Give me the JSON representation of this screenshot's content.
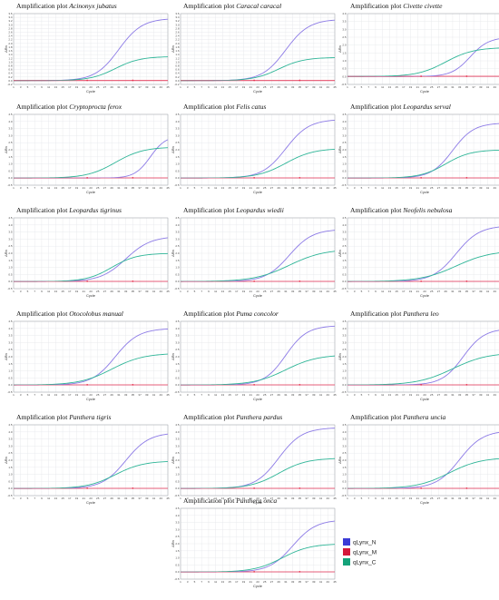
{
  "legend": [
    {
      "name": "qLynx_N",
      "color": "#3b3bd6"
    },
    {
      "name": "qLynx_M",
      "color": "#d4183a"
    },
    {
      "name": "qLynx_C",
      "color": "#14a37a"
    }
  ],
  "colors": {
    "N_curve": "#8c7ae6",
    "C_curve": "#2eb597",
    "M_curve": "#e05a78",
    "threshold": "#e8334f",
    "grid": "#e3e6ea",
    "axis": "#222222"
  },
  "chart_data": [
    {
      "type": "line",
      "title_prefix": "Amplification plot",
      "species": "Acinonyx jubatus",
      "xlabel": "Cycle",
      "ylabel": "ΔRn",
      "xlim": [
        1,
        45
      ],
      "ylim": [
        -0.2,
        3.6
      ],
      "yticks": [
        "-0.2",
        "0.0",
        "0.2",
        "0.4",
        "0.6",
        "0.8",
        "1.0",
        "1.2",
        "1.4",
        "1.6",
        "1.8",
        "2.0",
        "2.2",
        "2.4",
        "2.6",
        "2.8",
        "3.0",
        "3.2",
        "3.4",
        "3.6"
      ],
      "series": [
        {
          "name": "qLynx_N",
          "ct": 31,
          "plateau": 3.35,
          "slope": 0.3
        },
        {
          "name": "qLynx_C",
          "ct": 30,
          "plateau": 1.3,
          "slope": 0.28
        },
        {
          "name": "qLynx_M",
          "ct": 100,
          "plateau": 0.0,
          "slope": 0.3
        }
      ]
    },
    {
      "type": "line",
      "title_prefix": "Amplification plot",
      "species": "Caracal caracal",
      "xlabel": "Cycle",
      "ylabel": "ΔRn",
      "xlim": [
        1,
        45
      ],
      "ylim": [
        -0.2,
        3.6
      ],
      "yticks": [
        "-0.2",
        "0.0",
        "0.2",
        "0.4",
        "0.6",
        "0.8",
        "1.0",
        "1.2",
        "1.4",
        "1.6",
        "1.8",
        "2.0",
        "2.2",
        "2.4",
        "2.6",
        "2.8",
        "3.0",
        "3.2",
        "3.4",
        "3.6"
      ],
      "series": [
        {
          "name": "qLynx_N",
          "ct": 31,
          "plateau": 3.3,
          "slope": 0.3
        },
        {
          "name": "qLynx_C",
          "ct": 29,
          "plateau": 1.25,
          "slope": 0.28
        },
        {
          "name": "qLynx_M",
          "ct": 100,
          "plateau": 0.0,
          "slope": 0.3
        }
      ]
    },
    {
      "type": "line",
      "title_prefix": "Amplification plot",
      "species": "Civette civette",
      "xlabel": "Cycle",
      "ylabel": "ΔRn",
      "xlim": [
        1,
        45
      ],
      "ylim": [
        -0.5,
        4.0
      ],
      "yticks": [
        "-0.5",
        "0.0",
        "0.5",
        "1.0",
        "1.5",
        "2.0",
        "2.5",
        "3.0",
        "3.5",
        "4.0"
      ],
      "series": [
        {
          "name": "qLynx_N",
          "ct": 36,
          "plateau": 2.5,
          "slope": 0.38
        },
        {
          "name": "qLynx_C",
          "ct": 29,
          "plateau": 1.85,
          "slope": 0.25
        },
        {
          "name": "qLynx_M",
          "ct": 100,
          "plateau": 0.0,
          "slope": 0.3
        }
      ]
    },
    {
      "type": "line",
      "title_prefix": "Amplification plot",
      "species": "Cryptoprocta ferox",
      "xlabel": "Cycle",
      "ylabel": "ΔRn",
      "xlim": [
        1,
        45
      ],
      "ylim": [
        -0.5,
        4.5
      ],
      "yticks": [
        "-0.5",
        "0.0",
        "0.5",
        "1.0",
        "1.5",
        "2.0",
        "2.5",
        "3.0",
        "3.5",
        "4.0",
        "4.5"
      ],
      "series": [
        {
          "name": "qLynx_N",
          "ct": 40,
          "plateau": 3.0,
          "slope": 0.45
        },
        {
          "name": "qLynx_C",
          "ct": 30,
          "plateau": 2.2,
          "slope": 0.25
        },
        {
          "name": "qLynx_M",
          "ct": 100,
          "plateau": 0.0,
          "slope": 0.3
        }
      ]
    },
    {
      "type": "line",
      "title_prefix": "Amplification plot",
      "species": "Felis catus",
      "xlabel": "Cycle",
      "ylabel": "ΔRn",
      "xlim": [
        1,
        45
      ],
      "ylim": [
        -0.5,
        4.5
      ],
      "yticks": [
        "-0.5",
        "0.0",
        "0.5",
        "1.0",
        "1.5",
        "2.0",
        "2.5",
        "3.0",
        "3.5",
        "4.0",
        "4.5"
      ],
      "series": [
        {
          "name": "qLynx_N",
          "ct": 31,
          "plateau": 4.15,
          "slope": 0.3
        },
        {
          "name": "qLynx_C",
          "ct": 31,
          "plateau": 2.1,
          "slope": 0.25
        },
        {
          "name": "qLynx_M",
          "ct": 100,
          "plateau": 0.0,
          "slope": 0.3
        }
      ]
    },
    {
      "type": "line",
      "title_prefix": "Amplification plot",
      "species": "Leopardus serval",
      "xlabel": "Cycle",
      "ylabel": "ΔRn",
      "xlim": [
        1,
        45
      ],
      "ylim": [
        -0.5,
        4.5
      ],
      "yticks": [
        "-0.5",
        "0.0",
        "0.5",
        "1.0",
        "1.5",
        "2.0",
        "2.5",
        "3.0",
        "3.5",
        "4.0",
        "4.5"
      ],
      "series": [
        {
          "name": "qLynx_N",
          "ct": 31,
          "plateau": 3.9,
          "slope": 0.33
        },
        {
          "name": "qLynx_C",
          "ct": 29,
          "plateau": 2.0,
          "slope": 0.28
        },
        {
          "name": "qLynx_M",
          "ct": 100,
          "plateau": 0.0,
          "slope": 0.3
        }
      ]
    },
    {
      "type": "line",
      "title_prefix": "Amplification plot",
      "species": "Leopardus tigrinus",
      "xlabel": "Cycle",
      "ylabel": "ΔRn",
      "xlim": [
        1,
        45
      ],
      "ylim": [
        -0.5,
        4.5
      ],
      "yticks": [
        "-0.5",
        "0.0",
        "0.5",
        "1.0",
        "1.5",
        "2.0",
        "2.5",
        "3.0",
        "3.5",
        "4.0",
        "4.5"
      ],
      "series": [
        {
          "name": "qLynx_N",
          "ct": 33,
          "plateau": 3.2,
          "slope": 0.28
        },
        {
          "name": "qLynx_C",
          "ct": 29,
          "plateau": 2.0,
          "slope": 0.28
        },
        {
          "name": "qLynx_M",
          "ct": 100,
          "plateau": 0.0,
          "slope": 0.3
        }
      ]
    },
    {
      "type": "line",
      "title_prefix": "Amplification plot",
      "species": "Leopardus wiedii",
      "xlabel": "Cycle",
      "ylabel": "ΔRn",
      "xlim": [
        1,
        45
      ],
      "ylim": [
        -0.5,
        4.5
      ],
      "yticks": [
        "-0.5",
        "0.0",
        "0.5",
        "1.0",
        "1.5",
        "2.0",
        "2.5",
        "3.0",
        "3.5",
        "4.0",
        "4.5"
      ],
      "series": [
        {
          "name": "qLynx_N",
          "ct": 32,
          "plateau": 3.7,
          "slope": 0.3
        },
        {
          "name": "qLynx_C",
          "ct": 32,
          "plateau": 2.3,
          "slope": 0.2
        },
        {
          "name": "qLynx_M",
          "ct": 100,
          "plateau": 0.0,
          "slope": 0.3
        }
      ]
    },
    {
      "type": "line",
      "title_prefix": "Amplification plot",
      "species": "Neofelis nebulosa",
      "xlabel": "Cycle",
      "ylabel": "ΔRn",
      "xlim": [
        1,
        45
      ],
      "ylim": [
        -0.5,
        4.5
      ],
      "yticks": [
        "-0.5",
        "0.0",
        "0.5",
        "1.0",
        "1.5",
        "2.0",
        "2.5",
        "3.0",
        "3.5",
        "4.0",
        "4.5"
      ],
      "series": [
        {
          "name": "qLynx_N",
          "ct": 32,
          "plateau": 3.95,
          "slope": 0.3
        },
        {
          "name": "qLynx_C",
          "ct": 32,
          "plateau": 2.2,
          "slope": 0.2
        },
        {
          "name": "qLynx_M",
          "ct": 100,
          "plateau": 0.0,
          "slope": 0.3
        }
      ]
    },
    {
      "type": "line",
      "title_prefix": "Amplification plot",
      "species": "Otocolobus manual",
      "xlabel": "Cycle",
      "ylabel": "ΔRn",
      "xlim": [
        1,
        45
      ],
      "ylim": [
        -0.5,
        4.5
      ],
      "yticks": [
        "-0.5",
        "0.0",
        "0.5",
        "1.0",
        "1.5",
        "2.0",
        "2.5",
        "3.0",
        "3.5",
        "4.0",
        "4.5"
      ],
      "series": [
        {
          "name": "qLynx_N",
          "ct": 30,
          "plateau": 4.0,
          "slope": 0.3
        },
        {
          "name": "qLynx_C",
          "ct": 29,
          "plateau": 2.25,
          "slope": 0.22
        },
        {
          "name": "qLynx_M",
          "ct": 100,
          "plateau": 0.0,
          "slope": 0.3
        }
      ]
    },
    {
      "type": "line",
      "title_prefix": "Amplification plot",
      "species": "Puma concolor",
      "xlabel": "Cycle",
      "ylabel": "ΔRn",
      "xlim": [
        1,
        45
      ],
      "ylim": [
        -0.5,
        4.5
      ],
      "yticks": [
        "-0.5",
        "0.0",
        "0.5",
        "1.0",
        "1.5",
        "2.0",
        "2.5",
        "3.0",
        "3.5",
        "4.0",
        "4.5"
      ],
      "series": [
        {
          "name": "qLynx_N",
          "ct": 31,
          "plateau": 4.2,
          "slope": 0.33
        },
        {
          "name": "qLynx_C",
          "ct": 31,
          "plateau": 2.15,
          "slope": 0.22
        },
        {
          "name": "qLynx_M",
          "ct": 100,
          "plateau": 0.0,
          "slope": 0.3
        }
      ]
    },
    {
      "type": "line",
      "title_prefix": "Amplification plot",
      "species": "Panthera leo",
      "xlabel": "Cycle",
      "ylabel": "ΔRn",
      "xlim": [
        1,
        45
      ],
      "ylim": [
        -0.5,
        4.5
      ],
      "yticks": [
        "-0.5",
        "0.0",
        "0.5",
        "1.0",
        "1.5",
        "2.0",
        "2.5",
        "3.0",
        "3.5",
        "4.0",
        "4.5"
      ],
      "series": [
        {
          "name": "qLynx_N",
          "ct": 34,
          "plateau": 4.0,
          "slope": 0.33
        },
        {
          "name": "qLynx_C",
          "ct": 31,
          "plateau": 2.3,
          "slope": 0.2
        },
        {
          "name": "qLynx_M",
          "ct": 100,
          "plateau": 0.0,
          "slope": 0.3
        }
      ]
    },
    {
      "type": "line",
      "title_prefix": "Amplification plot",
      "species": "Panthera tigris",
      "xlabel": "Cycle",
      "ylabel": "ΔRn",
      "xlim": [
        1,
        45
      ],
      "ylim": [
        -0.5,
        4.5
      ],
      "yticks": [
        "-0.5",
        "0.0",
        "0.5",
        "1.0",
        "1.5",
        "2.0",
        "2.5",
        "3.0",
        "3.5",
        "4.0",
        "4.5"
      ],
      "series": [
        {
          "name": "qLynx_N",
          "ct": 33,
          "plateau": 3.95,
          "slope": 0.3
        },
        {
          "name": "qLynx_C",
          "ct": 30,
          "plateau": 1.95,
          "slope": 0.25
        },
        {
          "name": "qLynx_M",
          "ct": 100,
          "plateau": 0.0,
          "slope": 0.3
        }
      ]
    },
    {
      "type": "line",
      "title_prefix": "Amplification plot",
      "species": "Panthera pardus",
      "xlabel": "Cycle",
      "ylabel": "ΔRn",
      "xlim": [
        1,
        45
      ],
      "ylim": [
        -0.5,
        4.5
      ],
      "yticks": [
        "-0.5",
        "0.0",
        "0.5",
        "1.0",
        "1.5",
        "2.0",
        "2.5",
        "3.0",
        "3.5",
        "4.0",
        "4.5"
      ],
      "series": [
        {
          "name": "qLynx_N",
          "ct": 29,
          "plateau": 4.3,
          "slope": 0.3
        },
        {
          "name": "qLynx_C",
          "ct": 29,
          "plateau": 2.15,
          "slope": 0.25
        },
        {
          "name": "qLynx_M",
          "ct": 100,
          "plateau": 0.0,
          "slope": 0.3
        }
      ]
    },
    {
      "type": "line",
      "title_prefix": "Amplification plot",
      "species": "Panthera uncia",
      "xlabel": "Cycle",
      "ylabel": "ΔRn",
      "xlim": [
        1,
        45
      ],
      "ylim": [
        -0.5,
        4.5
      ],
      "yticks": [
        "-0.5",
        "0.0",
        "0.5",
        "1.0",
        "1.5",
        "2.0",
        "2.5",
        "3.0",
        "3.5",
        "4.0",
        "4.5"
      ],
      "series": [
        {
          "name": "qLynx_N",
          "ct": 33,
          "plateau": 4.1,
          "slope": 0.3
        },
        {
          "name": "qLynx_C",
          "ct": 30,
          "plateau": 2.2,
          "slope": 0.22
        },
        {
          "name": "qLynx_M",
          "ct": 100,
          "plateau": 0.0,
          "slope": 0.3
        }
      ]
    },
    {
      "type": "line",
      "title_prefix": "Amplification plot",
      "species": "Panthera onca",
      "xlabel": "Cycle",
      "ylabel": "ΔRn",
      "xlim": [
        1,
        45
      ],
      "ylim": [
        -0.5,
        4.5
      ],
      "yticks": [
        "-0.5",
        "0.0",
        "0.5",
        "1.0",
        "1.5",
        "2.0",
        "2.5",
        "3.0",
        "3.5",
        "4.0",
        "4.5"
      ],
      "series": [
        {
          "name": "qLynx_N",
          "ct": 33,
          "plateau": 3.7,
          "slope": 0.3
        },
        {
          "name": "qLynx_C",
          "ct": 30,
          "plateau": 2.0,
          "slope": 0.25
        },
        {
          "name": "qLynx_M",
          "ct": 100,
          "plateau": 0.0,
          "slope": 0.3
        }
      ]
    }
  ]
}
